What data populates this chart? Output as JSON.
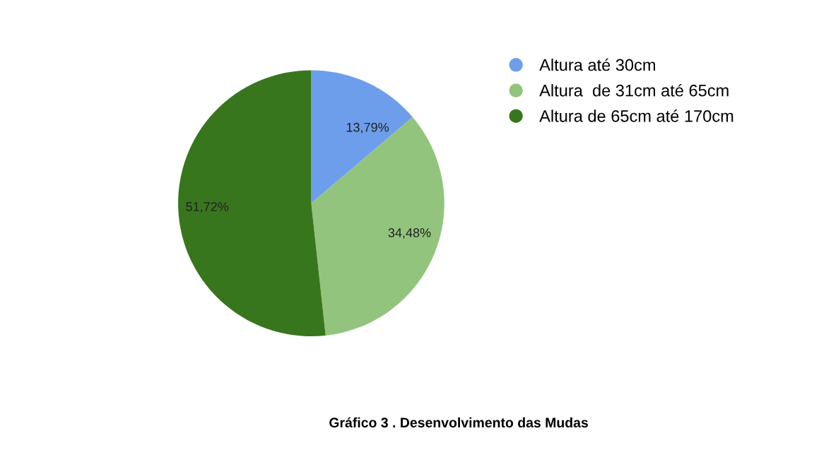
{
  "chart_data": {
    "type": "pie",
    "title": "Gráfico 3 . Desenvolvimento das Mudas",
    "categories": [
      "Altura até 30cm",
      "Altura  de 31cm até 65cm",
      "Altura de 65cm até 170cm"
    ],
    "values": [
      13.79,
      34.48,
      51.72
    ],
    "value_labels": [
      "13,79%",
      "34,48%",
      "51,72%"
    ],
    "colors": [
      "#6d9eeb",
      "#93c47d",
      "#38761d"
    ],
    "legend": "right"
  }
}
